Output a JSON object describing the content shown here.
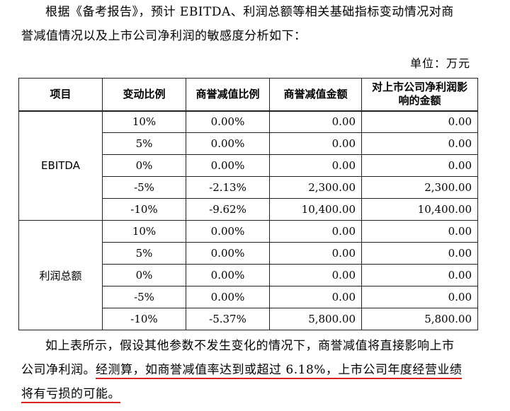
{
  "intro": [
    "根据《备考报告》，预计 EBITDA、利润总额等相关基础指标变动情况对商",
    "誉减值情况以及上市公司净利润的敏感度分析如下："
  ],
  "unit": "单位：万元",
  "table": {
    "headers": [
      "项目",
      "变动比例",
      "商誉减值比例",
      "商誉减值金额",
      "对上市公司净利润影响的金额"
    ],
    "groups": [
      {
        "item": "EBITDA",
        "rows": [
          {
            "change": "10%",
            "ratio": "0.00%",
            "amount": "0.00",
            "impact": "0.00"
          },
          {
            "change": "5%",
            "ratio": "0.00%",
            "amount": "0.00",
            "impact": "0.00"
          },
          {
            "change": "0%",
            "ratio": "0.00%",
            "amount": "0.00",
            "impact": "0.00"
          },
          {
            "change": "-5%",
            "ratio": "-2.13%",
            "amount": "2,300.00",
            "impact": "2,300.00"
          },
          {
            "change": "-10%",
            "ratio": "-9.62%",
            "amount": "10,400.00",
            "impact": "10,400.00"
          }
        ]
      },
      {
        "item": "利润总额",
        "rows": [
          {
            "change": "10%",
            "ratio": "0.00%",
            "amount": "0.00",
            "impact": "0.00"
          },
          {
            "change": "5%",
            "ratio": "0.00%",
            "amount": "0.00",
            "impact": "0.00"
          },
          {
            "change": "0%",
            "ratio": "0.00%",
            "amount": "0.00",
            "impact": "0.00"
          },
          {
            "change": "-5%",
            "ratio": "0.00%",
            "amount": "0.00",
            "impact": "0.00"
          },
          {
            "change": "-10%",
            "ratio": "-5.37%",
            "amount": "5,800.00",
            "impact": "5,800.00"
          }
        ]
      }
    ]
  },
  "conclusion": {
    "line1": "如上表所示，假设其他参数不发生变化的情况下，商誉减值将直接影响上市",
    "line2_plain": "公司净利润。",
    "line2_highlight": "经测算，如商誉减值率达到或超过 6.18%，上市公司年度经营业绩",
    "line3_highlight": "将有亏损的可能。",
    "highlight_color": "#d8231f"
  }
}
